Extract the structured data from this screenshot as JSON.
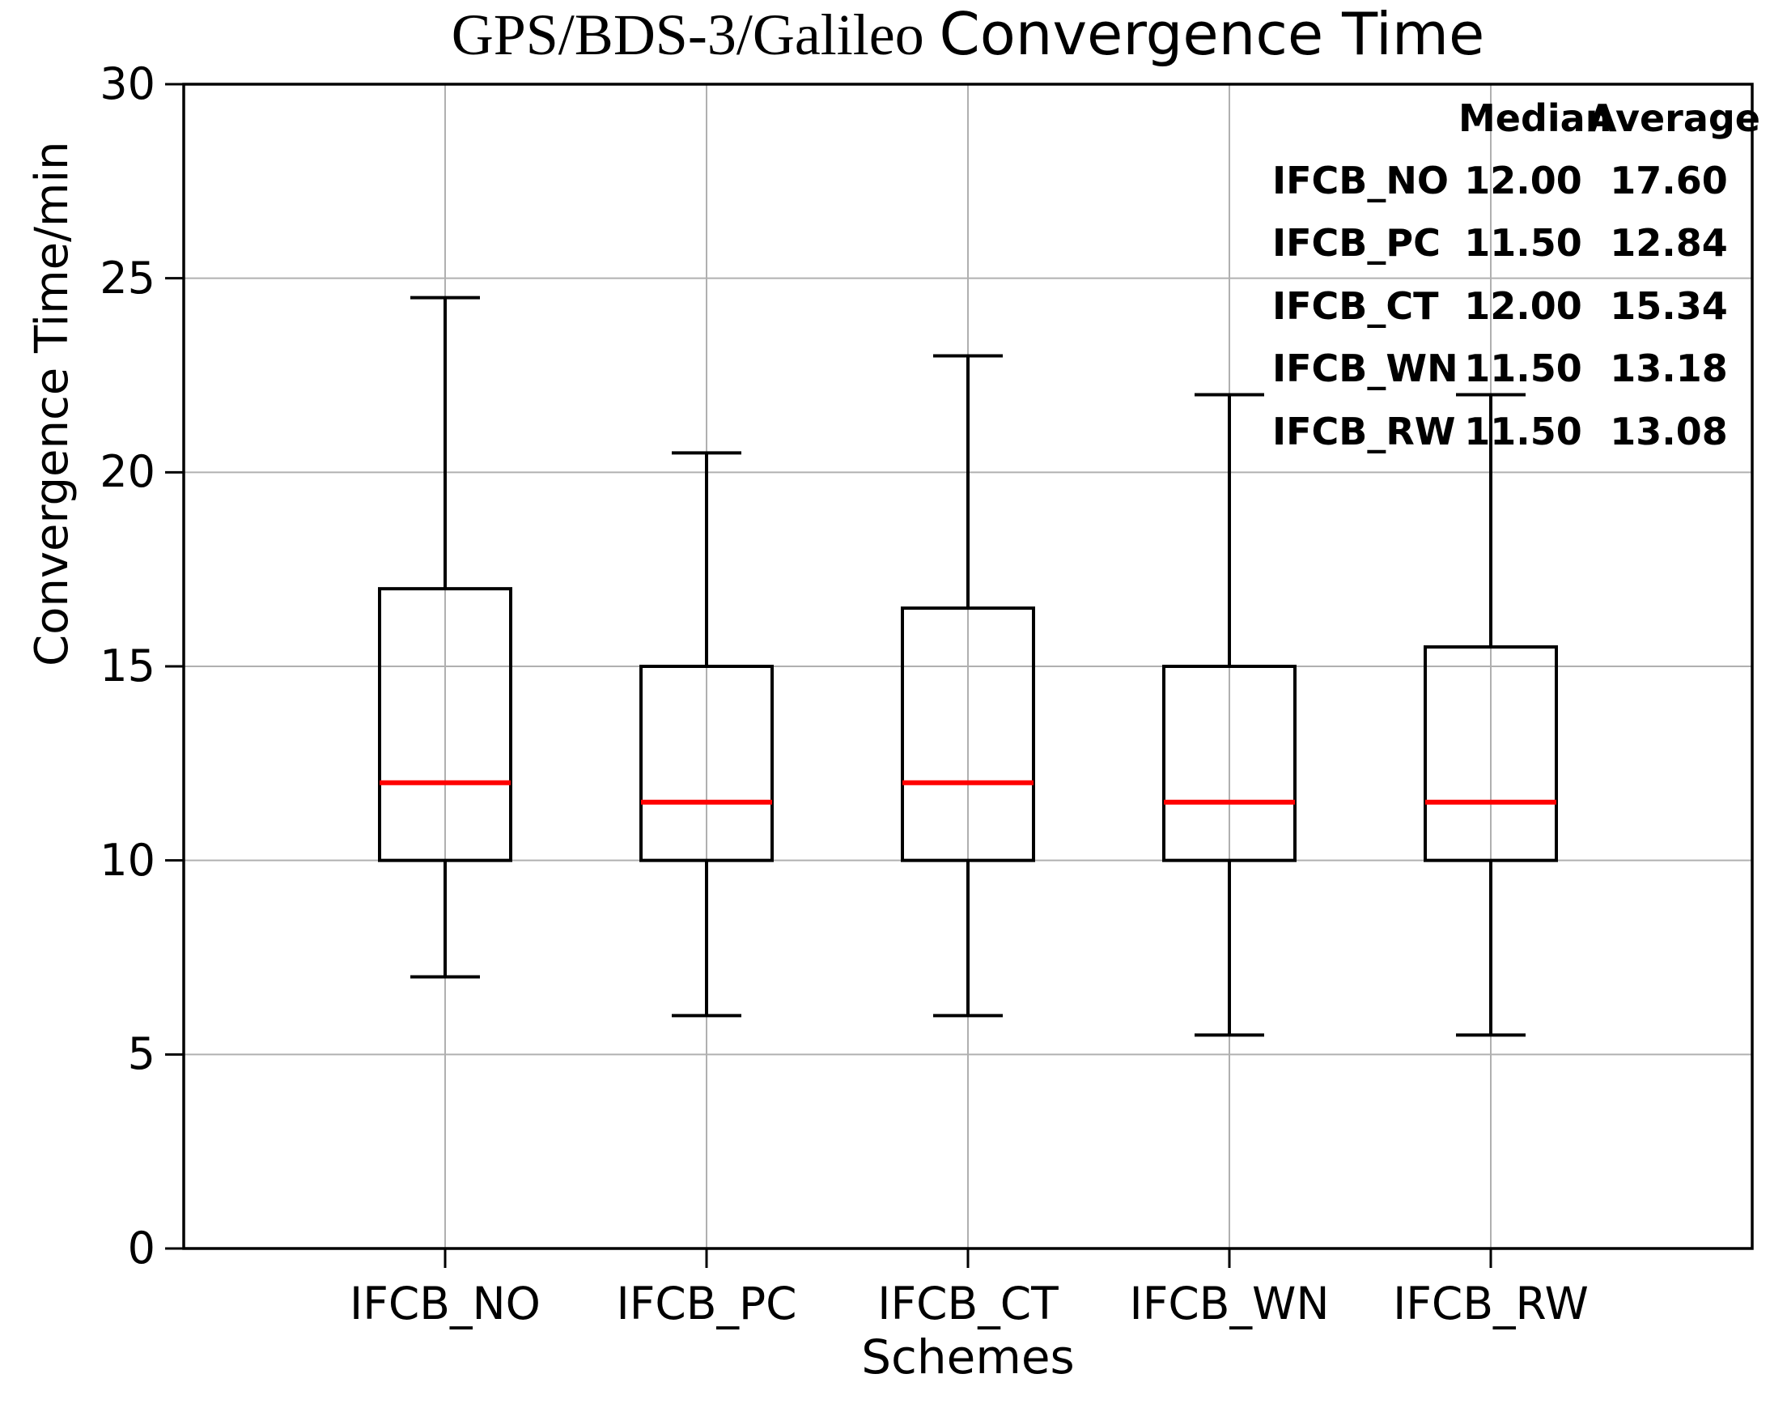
{
  "chart_data": {
    "type": "boxplot",
    "title_serif": "GPS/BDS-3/Galileo",
    "title_sans": "Convergence Time",
    "xlabel": "Schemes",
    "ylabel": "Convergence Time/min",
    "ylim": [
      0,
      30
    ],
    "yticks": [
      0,
      5,
      10,
      15,
      20,
      25,
      30
    ],
    "grid": true,
    "legend_position": "top-right",
    "categories": [
      "IFCB_NO",
      "IFCB_PC",
      "IFCB_CT",
      "IFCB_WN",
      "IFCB_RW"
    ],
    "series": [
      {
        "label": "IFCB_NO",
        "whisker_low": 7.0,
        "q1": 10.0,
        "median": 12.0,
        "q3": 17.0,
        "whisker_high": 24.5
      },
      {
        "label": "IFCB_PC",
        "whisker_low": 6.0,
        "q1": 10.0,
        "median": 11.5,
        "q3": 15.0,
        "whisker_high": 20.5
      },
      {
        "label": "IFCB_CT",
        "whisker_low": 6.0,
        "q1": 10.0,
        "median": 12.0,
        "q3": 16.5,
        "whisker_high": 23.0
      },
      {
        "label": "IFCB_WN",
        "whisker_low": 5.5,
        "q1": 10.0,
        "median": 11.5,
        "q3": 15.0,
        "whisker_high": 22.0
      },
      {
        "label": "IFCB_RW",
        "whisker_low": 5.5,
        "q1": 10.0,
        "median": 11.5,
        "q3": 15.5,
        "whisker_high": 22.0
      }
    ],
    "legend": {
      "headers": [
        "Median",
        "Average"
      ],
      "rows": [
        {
          "label": "IFCB_NO",
          "median": "12.00",
          "average": "17.60"
        },
        {
          "label": "IFCB_PC",
          "median": "11.50",
          "average": "12.84"
        },
        {
          "label": "IFCB_CT",
          "median": "12.00",
          "average": "15.34"
        },
        {
          "label": "IFCB_WN",
          "median": "11.50",
          "average": "13.18"
        },
        {
          "label": "IFCB_RW",
          "median": "11.50",
          "average": "13.08"
        }
      ]
    },
    "colors": {
      "median_line": "#ff0000",
      "box_stroke": "#000000",
      "grid_line": "#b0b0b0",
      "frame": "#000000",
      "text": "#000000"
    }
  }
}
